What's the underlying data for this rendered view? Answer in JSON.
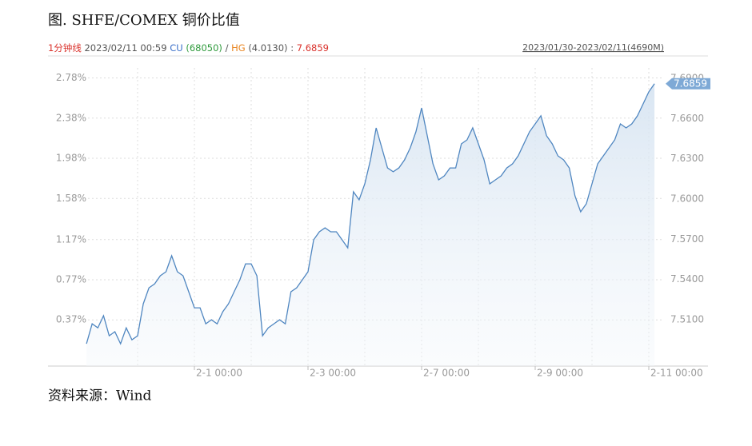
{
  "chart_data": {
    "type": "line",
    "title": "图. SHFE/COMEX 铜价比值",
    "info": {
      "period": "1分钟线",
      "datetime": "2023/02/11 00:59",
      "cu": "CU",
      "cu_price": "(68050)",
      "slash": "/",
      "hg": "HG",
      "hg_price": "(4.0130)",
      "colon": ":"
    },
    "range_label": "2023/01/30-2023/02/11(4690M)",
    "source": "资料来源：Wind",
    "categories": [
      null,
      null,
      null,
      null,
      null,
      null,
      null,
      null,
      null,
      null,
      null,
      null,
      null,
      null,
      null,
      null,
      null,
      null,
      null,
      "2-1 00:00",
      null,
      null,
      null,
      null,
      null,
      null,
      null,
      null,
      null,
      null,
      null,
      null,
      null,
      null,
      null,
      null,
      null,
      null,
      null,
      "2-3 00:00",
      null,
      null,
      null,
      null,
      null,
      null,
      null,
      null,
      null,
      null,
      null,
      null,
      null,
      null,
      null,
      null,
      null,
      null,
      null,
      "2-7 00:00",
      null,
      null,
      null,
      null,
      null,
      null,
      null,
      null,
      null,
      null,
      null,
      null,
      null,
      null,
      null,
      null,
      null,
      null,
      null,
      "2-9 00:00",
      null,
      null,
      null,
      null,
      null,
      null,
      null,
      null,
      null,
      null,
      null,
      null,
      null,
      null,
      null,
      null,
      null,
      null,
      null,
      "2-11 00:00",
      null
    ],
    "series": [
      {
        "axis": "y2",
        "color": "#4f86c0",
        "values": [
          7.4921,
          7.507,
          7.504,
          7.513,
          7.4981,
          7.5011,
          7.4921,
          7.504,
          7.4951,
          7.4981,
          7.5219,
          7.5338,
          7.5368,
          7.5428,
          7.5458,
          7.5577,
          7.5458,
          7.5428,
          7.5309,
          7.5189,
          7.5189,
          7.507,
          7.51,
          7.507,
          7.516,
          7.5219,
          7.5309,
          7.5398,
          7.5517,
          7.5517,
          7.5428,
          7.4981,
          7.504,
          7.507,
          7.51,
          7.507,
          7.5309,
          7.5338,
          7.5398,
          7.5458,
          7.5696,
          7.5756,
          7.5785,
          7.5756,
          7.5756,
          7.5696,
          7.5636,
          7.6054,
          7.5994,
          7.6113,
          7.6292,
          7.653,
          7.6381,
          7.6232,
          7.6203,
          7.6232,
          7.6292,
          7.6381,
          7.6501,
          7.6679,
          7.6471,
          7.6262,
          7.6143,
          7.6173,
          7.6232,
          7.6232,
          7.6411,
          7.6441,
          7.653,
          7.6411,
          7.6292,
          7.6113,
          7.6143,
          7.6173,
          7.6232,
          7.6262,
          7.6322,
          7.6411,
          7.6501,
          7.656,
          7.662,
          7.6471,
          7.6411,
          7.6322,
          7.6292,
          7.6232,
          7.6024,
          7.5905,
          7.5964,
          7.6113,
          7.6262,
          7.6322,
          7.6381,
          7.6441,
          7.656,
          7.653,
          7.656,
          7.662,
          7.6709,
          7.6799,
          7.6859
        ]
      }
    ],
    "ylim": [
      -0.09,
      2.88
    ],
    "yticks": [
      {
        "value": 0.37,
        "label": "0.37%"
      },
      {
        "value": 0.77,
        "label": "0.77%"
      },
      {
        "value": 1.17,
        "label": "1.17%"
      },
      {
        "value": 1.58,
        "label": "1.58%"
      },
      {
        "value": 1.98,
        "label": "1.98%"
      },
      {
        "value": 2.38,
        "label": "2.38%"
      },
      {
        "value": 2.78,
        "label": "2.78%"
      }
    ],
    "y2lim": [
      7.4755,
      7.6977
    ],
    "y2ticks": [
      {
        "value": 7.51,
        "label": "7.5100"
      },
      {
        "value": 7.54,
        "label": "7.5400"
      },
      {
        "value": 7.57,
        "label": "7.5700"
      },
      {
        "value": 7.6,
        "label": "7.6000"
      },
      {
        "value": 7.63,
        "label": "7.6300"
      },
      {
        "value": 7.66,
        "label": "7.6600"
      },
      {
        "value": 7.69,
        "label": "7.6900"
      }
    ],
    "grid": true
  }
}
